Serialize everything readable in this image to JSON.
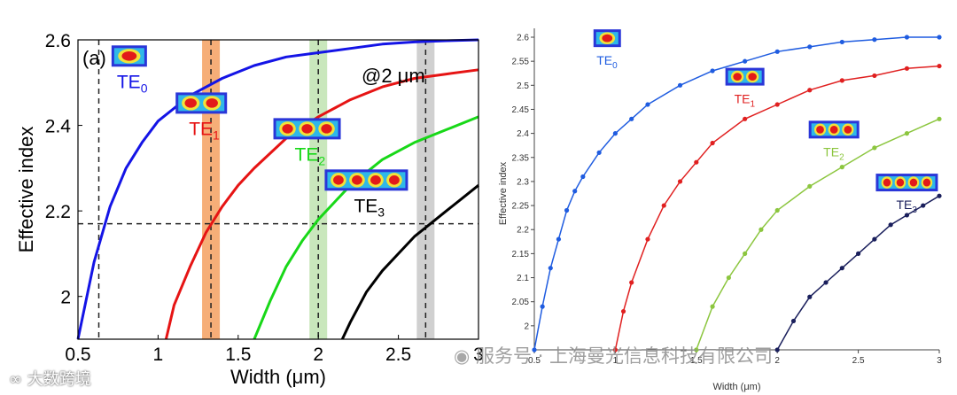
{
  "chart_data": [
    {
      "type": "line",
      "panel_label": "(a)",
      "xlabel": "Width (μm)",
      "ylabel": "Effective index",
      "xlim": [
        0.5,
        3.0
      ],
      "ylim": [
        1.9,
        2.6
      ],
      "x_ticks": [
        "0.5",
        "1",
        "1.5",
        "2",
        "2.5",
        "3"
      ],
      "y_ticks": [
        "2",
        "2.2",
        "2.4",
        "2.6"
      ],
      "annotation": "@2 μm",
      "reference_line_y": 2.17,
      "reference_lines_x": [
        0.63,
        1.33,
        2.0,
        2.67
      ],
      "highlight_bands": [
        {
          "x": 1.33,
          "color": "#f4a060"
        },
        {
          "x": 2.0,
          "color": "#bfe3b0"
        },
        {
          "x": 2.67,
          "color": "#c8c8c8"
        }
      ],
      "series": [
        {
          "name": "TE0",
          "color": "#1414e6",
          "x": [
            0.5,
            0.6,
            0.7,
            0.8,
            0.9,
            1.0,
            1.2,
            1.4,
            1.6,
            1.8,
            2.0,
            2.2,
            2.4,
            2.6,
            2.8,
            3.0
          ],
          "y": [
            1.9,
            2.08,
            2.21,
            2.3,
            2.36,
            2.41,
            2.47,
            2.51,
            2.54,
            2.56,
            2.57,
            2.58,
            2.59,
            2.595,
            2.598,
            2.6
          ]
        },
        {
          "name": "TE1",
          "color": "#e61414",
          "x": [
            1.05,
            1.1,
            1.2,
            1.3,
            1.4,
            1.5,
            1.6,
            1.8,
            2.0,
            2.2,
            2.4,
            2.6,
            2.8,
            3.0
          ],
          "y": [
            1.9,
            1.98,
            2.07,
            2.15,
            2.21,
            2.26,
            2.3,
            2.37,
            2.42,
            2.46,
            2.49,
            2.51,
            2.52,
            2.53
          ]
        },
        {
          "name": "TE2",
          "color": "#18d818",
          "x": [
            1.6,
            1.7,
            1.8,
            1.9,
            2.0,
            2.1,
            2.2,
            2.4,
            2.6,
            2.8,
            3.0
          ],
          "y": [
            1.9,
            1.99,
            2.07,
            2.13,
            2.18,
            2.22,
            2.26,
            2.32,
            2.36,
            2.39,
            2.42
          ]
        },
        {
          "name": "TE3",
          "color": "#000000",
          "x": [
            2.15,
            2.2,
            2.3,
            2.4,
            2.5,
            2.6,
            2.7,
            2.8,
            2.9,
            3.0
          ],
          "y": [
            1.9,
            1.94,
            2.01,
            2.06,
            2.1,
            2.14,
            2.17,
            2.2,
            2.23,
            2.26
          ]
        }
      ],
      "mode_labels": [
        {
          "text": "TE",
          "sub": "0",
          "color": "#1414e6",
          "x": 0.82,
          "y": 2.5,
          "lobes": 1
        },
        {
          "text": "TE",
          "sub": "1",
          "color": "#e61414",
          "x": 1.27,
          "y": 2.39,
          "lobes": 2
        },
        {
          "text": "TE",
          "sub": "2",
          "color": "#18d818",
          "x": 1.93,
          "y": 2.33,
          "lobes": 3
        },
        {
          "text": "TE",
          "sub": "3",
          "color": "#000000",
          "x": 2.3,
          "y": 2.21,
          "lobes": 4
        }
      ]
    },
    {
      "type": "line",
      "xlabel": "Width (μm)",
      "ylabel": "Effective index",
      "xlim": [
        0.5,
        3.0
      ],
      "ylim": [
        1.95,
        2.6
      ],
      "x_ticks": [
        "0.5",
        "1",
        "1.5",
        "2",
        "2.5",
        "3"
      ],
      "y_ticks": [
        "2",
        "2.05",
        "2.1",
        "2.15",
        "2.2",
        "2.25",
        "2.3",
        "2.35",
        "2.4",
        "2.45",
        "2.5",
        "2.55",
        "2.6"
      ],
      "grid": false,
      "markers": true,
      "series": [
        {
          "name": "TE0",
          "color": "#1f5ce0",
          "x": [
            0.5,
            0.55,
            0.6,
            0.65,
            0.7,
            0.75,
            0.8,
            0.9,
            1.0,
            1.1,
            1.2,
            1.4,
            1.6,
            1.8,
            2.0,
            2.2,
            2.4,
            2.6,
            2.8,
            3.0
          ],
          "y": [
            1.95,
            2.04,
            2.12,
            2.18,
            2.24,
            2.28,
            2.31,
            2.36,
            2.4,
            2.43,
            2.46,
            2.5,
            2.53,
            2.55,
            2.57,
            2.58,
            2.59,
            2.595,
            2.6,
            2.6
          ]
        },
        {
          "name": "TE1",
          "color": "#e02020",
          "x": [
            1.0,
            1.05,
            1.1,
            1.2,
            1.3,
            1.4,
            1.5,
            1.6,
            1.8,
            2.0,
            2.2,
            2.4,
            2.6,
            2.8,
            3.0
          ],
          "y": [
            1.95,
            2.03,
            2.09,
            2.18,
            2.25,
            2.3,
            2.34,
            2.38,
            2.43,
            2.46,
            2.49,
            2.51,
            2.52,
            2.535,
            2.54
          ]
        },
        {
          "name": "TE2",
          "color": "#8cc63f",
          "x": [
            1.5,
            1.6,
            1.7,
            1.8,
            1.9,
            2.0,
            2.2,
            2.4,
            2.6,
            2.8,
            3.0
          ],
          "y": [
            1.95,
            2.04,
            2.1,
            2.15,
            2.2,
            2.24,
            2.29,
            2.33,
            2.37,
            2.4,
            2.43
          ]
        },
        {
          "name": "TE3",
          "color": "#1a1f5c",
          "x": [
            2.0,
            2.1,
            2.2,
            2.3,
            2.4,
            2.5,
            2.6,
            2.7,
            2.8,
            2.9,
            3.0
          ],
          "y": [
            1.95,
            2.01,
            2.06,
            2.09,
            2.12,
            2.15,
            2.18,
            2.21,
            2.23,
            2.25,
            2.27
          ]
        }
      ],
      "mode_labels": [
        {
          "text": "TE",
          "sub": "0",
          "color": "#1f5ce0",
          "x": 0.95,
          "y": 2.55,
          "lobes": 1
        },
        {
          "text": "TE",
          "sub": "1",
          "color": "#e02020",
          "x": 1.8,
          "y": 2.47,
          "lobes": 2
        },
        {
          "text": "TE",
          "sub": "2",
          "color": "#8cc63f",
          "x": 2.35,
          "y": 2.36,
          "lobes": 3
        },
        {
          "text": "TE",
          "sub": "3",
          "color": "#1a1f5c",
          "x": 2.8,
          "y": 2.25,
          "lobes": 4
        }
      ]
    }
  ],
  "watermarks": {
    "right": "服务号 · 上海曼光信息科技有限公司",
    "left": "大数跨境"
  }
}
